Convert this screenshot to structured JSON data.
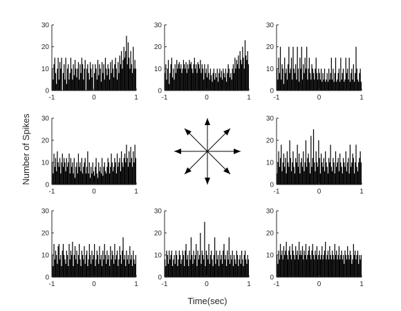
{
  "chart_data": {
    "type": "bar",
    "figure": {
      "xlabel": "Time(sec)",
      "ylabel": "Number of Spikes",
      "center": "eight-direction arrows (up, down, left, right and four diagonals)"
    },
    "shared_axes": {
      "xlim": [
        -1,
        1
      ],
      "ylim": [
        0,
        30
      ],
      "xticks": [
        "-1",
        "0",
        "1"
      ],
      "yticks": [
        "0",
        "10",
        "20",
        "30"
      ],
      "bin_width_sec": 0.02,
      "grid": false
    },
    "panels": [
      {
        "position": "top-left",
        "direction": "up-left",
        "x_start": -1,
        "bin_width": 0.02,
        "values": [
          10,
          5,
          12,
          15,
          8,
          3,
          10,
          15,
          5,
          13,
          10,
          15,
          0,
          8,
          12,
          5,
          15,
          3,
          10,
          12,
          5,
          8,
          15,
          10,
          5,
          12,
          7,
          14,
          10,
          6,
          10,
          13,
          5,
          12,
          8,
          15,
          12,
          5,
          10,
          14,
          0,
          10,
          12,
          8,
          5,
          13,
          10,
          6,
          12,
          0,
          8,
          12,
          10,
          5,
          14,
          7,
          12,
          10,
          4,
          13,
          8,
          12,
          5,
          15,
          10,
          7,
          12,
          10,
          5,
          13,
          8,
          14,
          10,
          6,
          12,
          15,
          10,
          5,
          13,
          8,
          16,
          12,
          18,
          10,
          14,
          20,
          15,
          18,
          25,
          12,
          22,
          15,
          10,
          18,
          12,
          8,
          20,
          10,
          14,
          10
        ]
      },
      {
        "position": "top-center",
        "direction": "up",
        "x_start": -1,
        "bin_width": 0.02,
        "values": [
          8,
          12,
          5,
          10,
          14,
          3,
          8,
          12,
          15,
          6,
          10,
          5,
          12,
          8,
          14,
          10,
          12,
          13,
          10,
          12,
          8,
          10,
          14,
          12,
          10,
          13,
          8,
          12,
          10,
          14,
          12,
          13,
          10,
          8,
          12,
          15,
          10,
          12,
          8,
          13,
          12,
          10,
          14,
          8,
          12,
          10,
          5,
          12,
          8,
          10,
          6,
          12,
          8,
          5,
          10,
          7,
          4,
          8,
          10,
          5,
          8,
          6,
          10,
          4,
          8,
          10,
          6,
          9,
          5,
          10,
          8,
          6,
          10,
          4,
          8,
          12,
          10,
          6,
          8,
          5,
          10,
          12,
          8,
          15,
          10,
          14,
          12,
          16,
          10,
          18,
          14,
          12,
          20,
          15,
          10,
          23,
          16,
          14,
          18,
          12
        ]
      },
      {
        "position": "top-right",
        "direction": "up-right",
        "x_start": -1,
        "bin_width": 0.02,
        "values": [
          10,
          5,
          15,
          8,
          20,
          5,
          12,
          10,
          3,
          15,
          8,
          10,
          5,
          12,
          20,
          8,
          10,
          15,
          5,
          20,
          10,
          8,
          12,
          5,
          20,
          10,
          4,
          15,
          10,
          20,
          5,
          12,
          8,
          15,
          10,
          20,
          5,
          10,
          15,
          8,
          5,
          12,
          10,
          8,
          5,
          10,
          15,
          8,
          5,
          10,
          8,
          5,
          10,
          4,
          8,
          5,
          10,
          4,
          5,
          8,
          4,
          10,
          5,
          8,
          15,
          5,
          10,
          4,
          8,
          15,
          4,
          5,
          8,
          10,
          4,
          15,
          5,
          8,
          10,
          4,
          5,
          15,
          8,
          10,
          5,
          15,
          4,
          8,
          10,
          5,
          12,
          4,
          8,
          20,
          10,
          5,
          4,
          8,
          10,
          4
        ]
      },
      {
        "position": "middle-left",
        "direction": "left",
        "x_start": -1,
        "bin_width": 0.02,
        "values": [
          10,
          5,
          14,
          8,
          12,
          6,
          15,
          10,
          8,
          12,
          5,
          10,
          14,
          8,
          12,
          10,
          6,
          12,
          8,
          10,
          14,
          5,
          12,
          8,
          10,
          5,
          12,
          3,
          8,
          10,
          5,
          14,
          8,
          10,
          6,
          12,
          5,
          8,
          10,
          12,
          5,
          8,
          15,
          5,
          10,
          3,
          8,
          5,
          10,
          6,
          4,
          8,
          12,
          5,
          3,
          10,
          6,
          8,
          5,
          12,
          4,
          8,
          10,
          6,
          5,
          8,
          12,
          10,
          5,
          8,
          14,
          10,
          6,
          8,
          12,
          10,
          5,
          14,
          8,
          10,
          12,
          6,
          15,
          10,
          8,
          12,
          14,
          10,
          18,
          12,
          8,
          15,
          10,
          17,
          12,
          8,
          15,
          10,
          18,
          12
        ]
      },
      {
        "position": "middle-right",
        "direction": "right",
        "x_start": -1,
        "bin_width": 0.02,
        "values": [
          5,
          10,
          15,
          8,
          12,
          18,
          6,
          10,
          14,
          8,
          12,
          5,
          15,
          10,
          8,
          20,
          12,
          6,
          10,
          15,
          8,
          5,
          12,
          10,
          18,
          8,
          14,
          5,
          10,
          12,
          8,
          15,
          6,
          10,
          20,
          8,
          12,
          14,
          10,
          5,
          22,
          8,
          12,
          25,
          10,
          6,
          15,
          10,
          8,
          20,
          12,
          5,
          14,
          10,
          8,
          12,
          6,
          15,
          10,
          8,
          5,
          12,
          10,
          18,
          8,
          6,
          12,
          10,
          5,
          15,
          8,
          10,
          12,
          6,
          14,
          10,
          8,
          5,
          12,
          10,
          8,
          15,
          6,
          10,
          12,
          5,
          18,
          8,
          10,
          14,
          12,
          5,
          10,
          18,
          8,
          6,
          10,
          12,
          15,
          10
        ]
      },
      {
        "position": "bottom-left",
        "direction": "down-left",
        "x_start": -1,
        "bin_width": 0.02,
        "values": [
          10,
          5,
          15,
          8,
          12,
          10,
          6,
          14,
          15,
          8,
          10,
          5,
          12,
          15,
          10,
          8,
          6,
          12,
          10,
          5,
          15,
          8,
          12,
          10,
          16,
          5,
          10,
          14,
          8,
          12,
          6,
          10,
          15,
          8,
          5,
          12,
          10,
          8,
          14,
          6,
          10,
          12,
          5,
          8,
          15,
          10,
          6,
          12,
          8,
          10,
          15,
          5,
          8,
          12,
          10,
          6,
          14,
          8,
          10,
          5,
          12,
          8,
          15,
          10,
          6,
          12,
          8,
          10,
          5,
          14,
          8,
          12,
          10,
          6,
          15,
          8,
          10,
          12,
          5,
          8,
          14,
          10,
          6,
          12,
          18,
          8,
          10,
          5,
          12,
          8,
          10,
          6,
          14,
          8,
          10,
          5,
          12,
          8,
          6,
          10
        ]
      },
      {
        "position": "bottom-center",
        "direction": "down",
        "x_start": -1,
        "bin_width": 0.02,
        "values": [
          8,
          5,
          12,
          10,
          6,
          12,
          8,
          10,
          12,
          5,
          8,
          10,
          6,
          12,
          10,
          5,
          8,
          12,
          10,
          6,
          8,
          12,
          10,
          5,
          12,
          15,
          8,
          10,
          5,
          12,
          8,
          18,
          10,
          6,
          12,
          8,
          10,
          15,
          5,
          12,
          8,
          10,
          20,
          6,
          12,
          10,
          8,
          25,
          5,
          12,
          10,
          8,
          15,
          6,
          10,
          12,
          8,
          5,
          10,
          18,
          6,
          12,
          8,
          10,
          5,
          12,
          8,
          10,
          6,
          12,
          15,
          8,
          10,
          5,
          12,
          8,
          18,
          6,
          10,
          8,
          12,
          5,
          10,
          8,
          6,
          12,
          10,
          5,
          8,
          10,
          6,
          12,
          8,
          5,
          10,
          12,
          8,
          6,
          10,
          8
        ]
      },
      {
        "position": "bottom-right",
        "direction": "down-right",
        "x_start": -1,
        "bin_width": 0.02,
        "values": [
          10,
          6,
          12,
          8,
          15,
          10,
          12,
          8,
          14,
          10,
          12,
          16,
          10,
          8,
          12,
          14,
          10,
          8,
          15,
          12,
          10,
          8,
          14,
          10,
          12,
          8,
          16,
          10,
          12,
          10,
          14,
          8,
          12,
          10,
          15,
          8,
          10,
          12,
          14,
          10,
          8,
          12,
          15,
          10,
          8,
          12,
          10,
          14,
          8,
          10,
          12,
          8,
          10,
          14,
          8,
          10,
          12,
          16,
          8,
          10,
          12,
          8,
          14,
          10,
          8,
          12,
          10,
          8,
          15,
          10,
          12,
          8,
          10,
          14,
          8,
          10,
          12,
          8,
          10,
          6,
          12,
          10,
          8,
          14,
          10,
          8,
          12,
          10,
          6,
          8,
          15,
          10,
          12,
          8,
          10,
          12,
          6,
          10,
          8,
          10
        ]
      }
    ]
  }
}
